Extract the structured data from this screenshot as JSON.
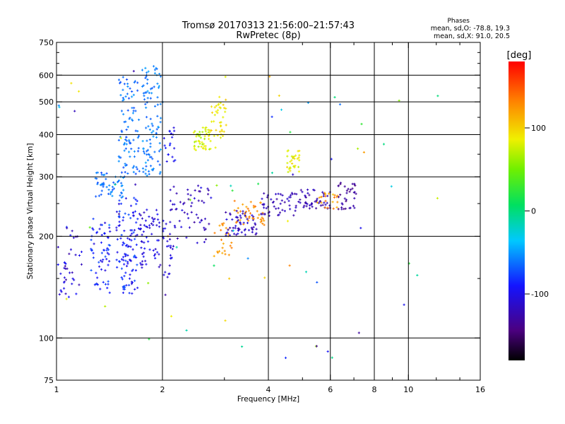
{
  "chart_data": {
    "type": "scatter",
    "title": "Tromsø 20170313 21:56:00–21:57:43",
    "subtitle": "RwPretec (8p)",
    "xlabel": "Frequency [MHz]",
    "ylabel": "Stationary phase Virtual Height [km]",
    "x_scale": "log",
    "y_scale": "log",
    "xlim": [
      1,
      16
    ],
    "ylim": [
      75,
      750
    ],
    "x_ticks": [
      1,
      2,
      4,
      6,
      8,
      10,
      16
    ],
    "x_minor_ticks": [
      3,
      5,
      7,
      9,
      12,
      14
    ],
    "y_ticks": [
      75,
      100,
      200,
      300,
      400,
      500,
      600,
      750
    ],
    "x_grid": [
      2,
      4,
      6,
      8,
      10
    ],
    "y_grid": [
      100,
      200,
      300,
      400,
      500,
      600
    ],
    "grid": true,
    "stats": {
      "title": "Phases",
      "line_o": "mean, sd,O: -78.8, 19.3",
      "line_x": "mean, sd,X:  91.0, 20.5"
    },
    "colorbar": {
      "label": "[deg]",
      "range": [
        -180,
        180
      ],
      "ticks": [
        100,
        0,
        -100
      ],
      "placement": "right"
    },
    "clusters": [
      {
        "f": [
          1.0,
          1.18
        ],
        "h": [
          128,
          215
        ],
        "phase": [
          -130,
          -80
        ],
        "n": 40
      },
      {
        "f": [
          1.25,
          1.42
        ],
        "h": [
          135,
          230
        ],
        "phase": [
          -110,
          -70
        ],
        "n": 60
      },
      {
        "f": [
          1.48,
          1.72
        ],
        "h": [
          135,
          260
        ],
        "phase": [
          -110,
          -70
        ],
        "n": 110
      },
      {
        "f": [
          1.72,
          1.98
        ],
        "h": [
          160,
          240
        ],
        "phase": [
          -120,
          -90
        ],
        "n": 60
      },
      {
        "f": [
          1.28,
          1.55
        ],
        "h": [
          260,
          310
        ],
        "phase": [
          -75,
          -50
        ],
        "n": 50
      },
      {
        "f": [
          1.5,
          1.72
        ],
        "h": [
          300,
          600
        ],
        "phase": [
          -75,
          -50
        ],
        "n": 90
      },
      {
        "f": [
          1.75,
          1.98
        ],
        "h": [
          300,
          640
        ],
        "phase": [
          -70,
          -45
        ],
        "n": 100
      },
      {
        "f": [
          2.0,
          2.15
        ],
        "h": [
          150,
          230
        ],
        "phase": [
          -115,
          -95
        ],
        "n": 25
      },
      {
        "f": [
          2.02,
          2.18
        ],
        "h": [
          330,
          420
        ],
        "phase": [
          -105,
          -85
        ],
        "n": 20
      },
      {
        "f": [
          2.1,
          2.75
        ],
        "h": [
          190,
          290
        ],
        "phase": [
          -130,
          -100
        ],
        "n": 60
      },
      {
        "f": [
          2.45,
          2.75
        ],
        "h": [
          360,
          420
        ],
        "phase": [
          60,
          90
        ],
        "n": 50
      },
      {
        "f": [
          2.72,
          3.05
        ],
        "h": [
          390,
          520
        ],
        "phase": [
          80,
          105
        ],
        "n": 40
      },
      {
        "f": [
          2.8,
          3.15
        ],
        "h": [
          170,
          220
        ],
        "phase": [
          110,
          135
        ],
        "n": 25
      },
      {
        "f": [
          3.0,
          3.7
        ],
        "h": [
          200,
          240
        ],
        "phase": [
          -130,
          -100
        ],
        "n": 60
      },
      {
        "f": [
          3.2,
          3.9
        ],
        "h": [
          215,
          255
        ],
        "phase": [
          115,
          140
        ],
        "n": 40
      },
      {
        "f": [
          3.8,
          4.8
        ],
        "h": [
          230,
          270
        ],
        "phase": [
          -130,
          -110
        ],
        "n": 50
      },
      {
        "f": [
          4.5,
          4.9
        ],
        "h": [
          310,
          360
        ],
        "phase": [
          70,
          100
        ],
        "n": 30
      },
      {
        "f": [
          4.8,
          6.0
        ],
        "h": [
          240,
          275
        ],
        "phase": [
          -135,
          -110
        ],
        "n": 50
      },
      {
        "f": [
          5.5,
          6.3
        ],
        "h": [
          240,
          270
        ],
        "phase": [
          110,
          140
        ],
        "n": 20
      },
      {
        "f": [
          6.3,
          7.1
        ],
        "h": [
          240,
          290
        ],
        "phase": [
          -145,
          -120
        ],
        "n": 35
      },
      {
        "f": [
          1.0,
          12.5
        ],
        "h": [
          85,
          650
        ],
        "phase": [
          -140,
          140
        ],
        "n": 70
      }
    ]
  }
}
